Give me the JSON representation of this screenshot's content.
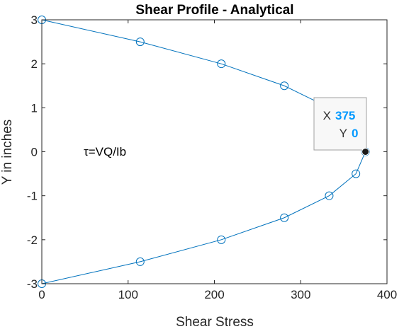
{
  "chart_data": {
    "type": "line",
    "title": "Shear Profile - Analytical",
    "xlabel": "Shear Stress",
    "ylabel": "Y in inches",
    "xlim": [
      0,
      400
    ],
    "ylim": [
      -3,
      3
    ],
    "xticks": [
      "0",
      "100",
      "200",
      "300",
      "400"
    ],
    "yticks": [
      "-3",
      "-2",
      "-1",
      "0",
      "1",
      "2",
      "3"
    ],
    "grid": false,
    "series": [
      {
        "marker": "circle",
        "color": "#0072BD",
        "points": [
          {
            "x": 0,
            "y": 3
          },
          {
            "x": 114,
            "y": 2.5
          },
          {
            "x": 208,
            "y": 2
          },
          {
            "x": 281,
            "y": 1.5
          },
          {
            "x": 333,
            "y": 1
          },
          {
            "x": 364,
            "y": 0.5
          },
          {
            "x": 375,
            "y": 0
          },
          {
            "x": 364,
            "y": -0.5
          },
          {
            "x": 333,
            "y": -1
          },
          {
            "x": 281,
            "y": -1.5
          },
          {
            "x": 208,
            "y": -2
          },
          {
            "x": 114,
            "y": -2.5
          },
          {
            "x": 0,
            "y": -3
          }
        ]
      }
    ],
    "annotation": "τ=VQ/Ib",
    "datatip": {
      "x_label": "X",
      "x_value": "375",
      "y_label": "Y",
      "y_value": "0",
      "value_color": "#0099FF"
    }
  }
}
